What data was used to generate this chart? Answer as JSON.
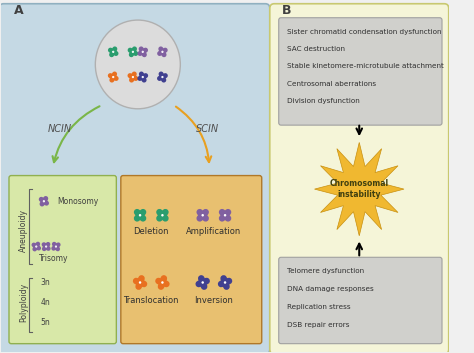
{
  "fig_width": 4.74,
  "fig_height": 3.53,
  "bg_color": "#f0f0f0",
  "panel_A_bg": "#c5d9e4",
  "panel_A_label": "A",
  "panel_B_bg": "#f5f5d8",
  "panel_B_label": "B",
  "ncin_label": "NCIN",
  "scin_label": "SCIN",
  "ncin_arrow_color": "#7ab648",
  "scin_arrow_color": "#e8a020",
  "green_box_bg": "#d8e8a8",
  "orange_box_bg": "#e8c070",
  "aneuploidy_label": "Aneuploidy",
  "polyploidy_label": "Polyploidy",
  "monosomy_label": "Monosomy",
  "trisomy_label": "Trisomy",
  "ploidy_labels": [
    "3n",
    "4n",
    "5n"
  ],
  "deletion_label": "Deletion",
  "amplification_label": "Amplification",
  "translocation_label": "Translocation",
  "inversion_label": "Inversion",
  "top_box_lines": [
    "Sister chromatid condensation dysfunction",
    "SAC destruction",
    "Stable kinetomere-microtubule attachment",
    "Centrosomal aberrations",
    "Division dysfunction"
  ],
  "bottom_box_lines": [
    "Telomere dysfunction",
    "DNA damage responses",
    "Replication stress",
    "DSB repair errors"
  ],
  "instability_label": "Chromosomal\ninstability",
  "star_color": "#f0b830",
  "chr_green": "#2a9d6e",
  "chr_purple": "#8060a0",
  "chr_orange": "#e87020",
  "chr_blue": "#404090",
  "top_box_bg": "#d0d0cc",
  "bottom_box_bg": "#d0d0cc"
}
